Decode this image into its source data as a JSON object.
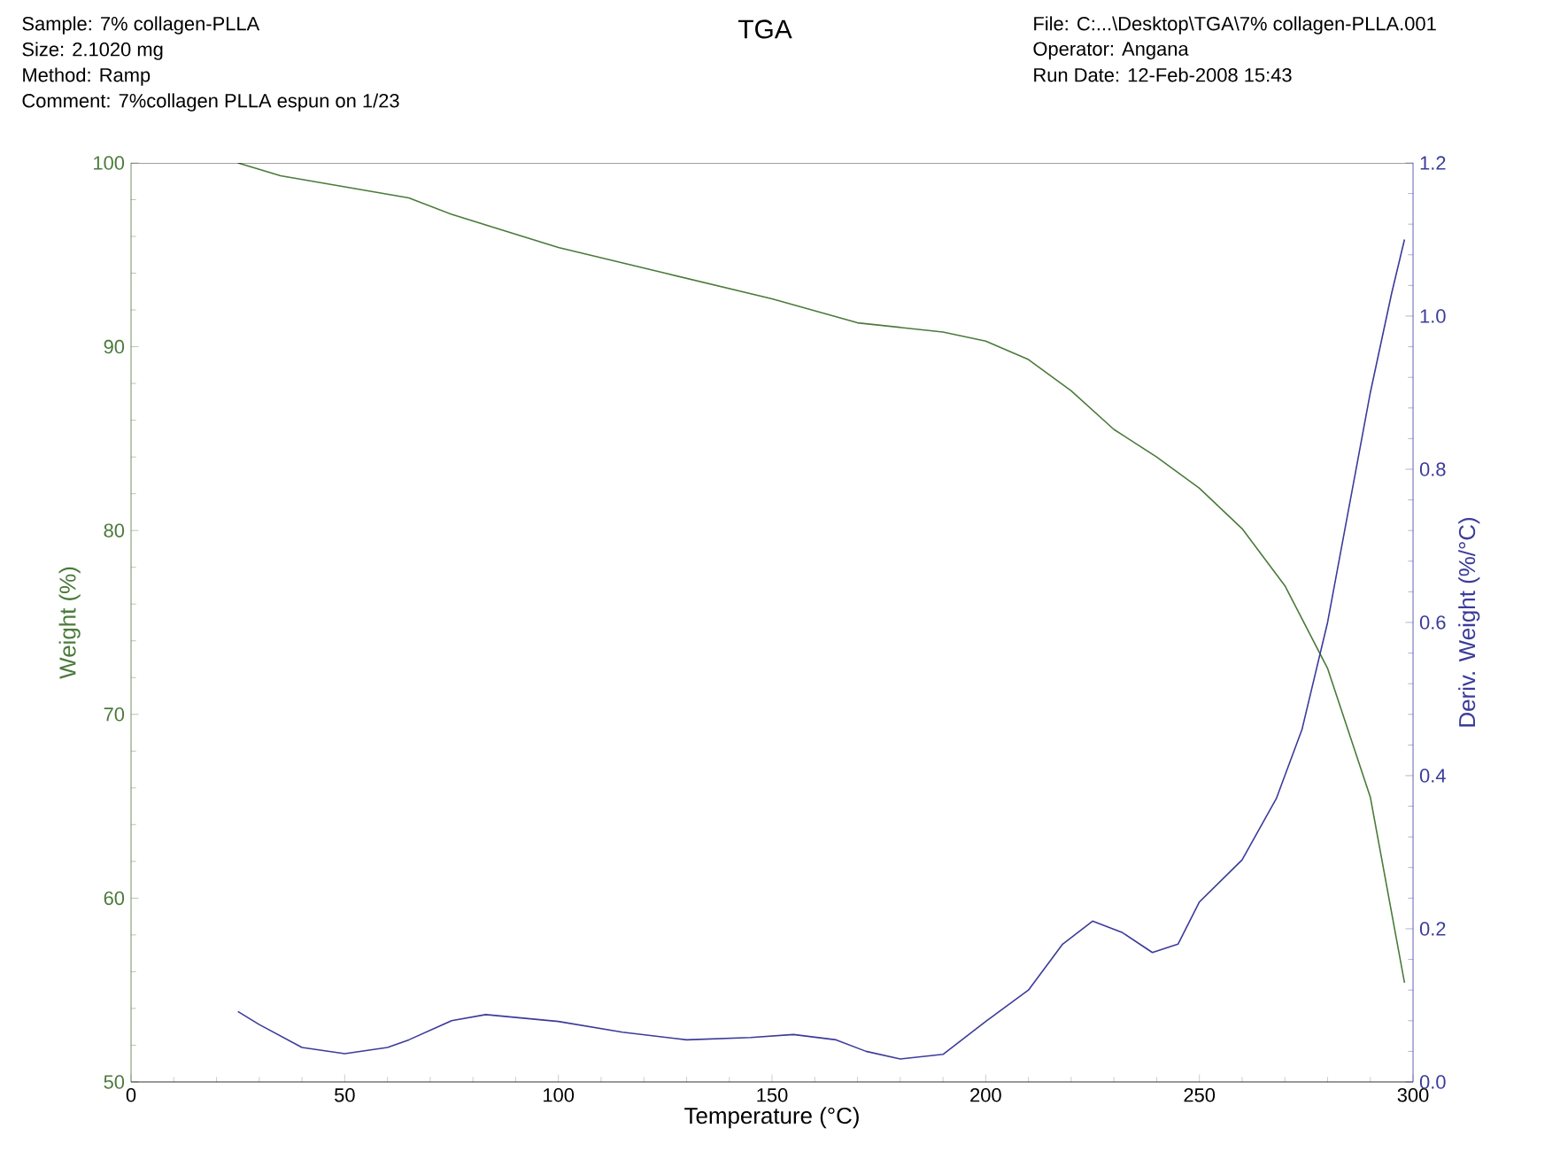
{
  "chart_data": {
    "type": "line",
    "title": "TGA",
    "annotations": [
      "Sample: 7% collagen-PLLA",
      "Size:  2.1020 mg",
      "Method: Ramp",
      "Comment: 7%collagen PLLA espun on 1/23",
      "File: C:...\\Desktop\\TGA\\7% collagen-PLLA.001",
      "Operator: Angana",
      "Run Date: 12-Feb-2008 15:43"
    ],
    "xlabel": "Temperature (°C)",
    "ylabel": "Weight (%)",
    "y2label": "Deriv. Weight (%/°C)",
    "xlim": [
      0,
      300
    ],
    "xticks": [
      0,
      50,
      100,
      150,
      200,
      250,
      300
    ],
    "ylim": [
      50,
      100
    ],
    "yticks": [
      50,
      60,
      70,
      80,
      90,
      100
    ],
    "y2lim": [
      0,
      1.2
    ],
    "y2ticks": [
      {
        "value": 0,
        "label": "0.0"
      },
      {
        "value": 0.2,
        "label": "0.2"
      },
      {
        "value": 0.4,
        "label": "0.4"
      },
      {
        "value": 0.6,
        "label": "0.6"
      },
      {
        "value": 0.8,
        "label": "0.8"
      },
      {
        "value": 1.0,
        "label": "1.0"
      },
      {
        "value": 1.2,
        "label": "1.2"
      }
    ],
    "grid": false,
    "marker": "none",
    "series": [
      {
        "color": "#4a7a3a",
        "axis": "y",
        "x": [
          25,
          35,
          50,
          65,
          75,
          100,
          125,
          150,
          170,
          190,
          200,
          210,
          220,
          230,
          240,
          250,
          260,
          270,
          280,
          290,
          298
        ],
        "values": [
          100,
          99.3,
          98.7,
          98.1,
          97.2,
          95.4,
          94.0,
          92.6,
          91.3,
          90.8,
          90.3,
          89.3,
          87.6,
          85.5,
          84.0,
          82.3,
          80.1,
          77.0,
          72.5,
          65.5,
          55.4
        ]
      },
      {
        "color": "#3b3b9a",
        "axis": "y2",
        "x": [
          25,
          30,
          40,
          50,
          60,
          65,
          75,
          83,
          100,
          115,
          130,
          145,
          155,
          165,
          172,
          180,
          190,
          200,
          210,
          218,
          225,
          232,
          239,
          245,
          250,
          260,
          268,
          274,
          280,
          285,
          290,
          295,
          298
        ],
        "values": [
          0.092,
          0.075,
          0.045,
          0.037,
          0.045,
          0.055,
          0.08,
          0.088,
          0.079,
          0.065,
          0.055,
          0.058,
          0.062,
          0.055,
          0.04,
          0.03,
          0.036,
          0.079,
          0.12,
          0.18,
          0.21,
          0.195,
          0.169,
          0.18,
          0.235,
          0.29,
          0.37,
          0.46,
          0.6,
          0.75,
          0.9,
          1.03,
          1.1
        ]
      }
    ]
  }
}
